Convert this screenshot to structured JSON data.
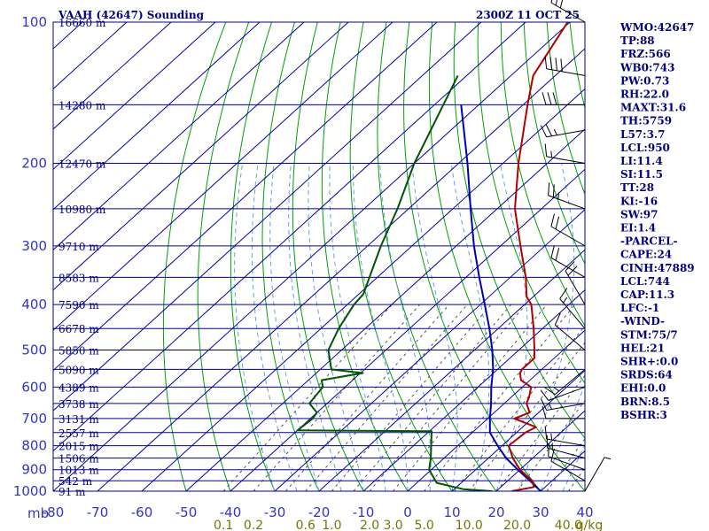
{
  "colors": {
    "frame": "#00007f",
    "isobar": "#0000aa",
    "isotherm": "#0000aa",
    "dry_adiabat": "#00a000",
    "moist_adiabat": "#6aa0d8",
    "mixing_ratio": "#555555",
    "temperature": "#b00000",
    "dewpoint": "#005500",
    "parcel": "#0000b0",
    "axis_label": "#3333cc",
    "mixing_label": "#777700",
    "text": "#00007f",
    "wind": "#000000"
  },
  "header": {
    "title": "VAAH (42647) Sounding",
    "time": "2300Z 11 OCT 25"
  },
  "chart_data": {
    "type": "skew-t",
    "pressure_range_mb": [
      1000,
      100
    ],
    "temperature_range_c": [
      -80,
      40
    ],
    "pressure_unit_label": "mb",
    "pressure_ticks": [
      100,
      200,
      300,
      400,
      500,
      600,
      700,
      800,
      900,
      1000
    ],
    "temperature_ticks": [
      "-80",
      "-70",
      "-60",
      "-50",
      "-40",
      "-30",
      "-20",
      "-10",
      "0",
      "10",
      "20",
      "30",
      "40"
    ],
    "height_labels": [
      {
        "p": 1000,
        "label": "91 m"
      },
      {
        "p": 950,
        "label": "542 m"
      },
      {
        "p": 900,
        "label": "1013 m"
      },
      {
        "p": 850,
        "label": "1506 m"
      },
      {
        "p": 800,
        "label": "2015 m"
      },
      {
        "p": 750,
        "label": "2557 m"
      },
      {
        "p": 700,
        "label": "3131 m"
      },
      {
        "p": 650,
        "label": "3738 m"
      },
      {
        "p": 600,
        "label": "4389 m"
      },
      {
        "p": 550,
        "label": "5090 m"
      },
      {
        "p": 500,
        "label": "5850 m"
      },
      {
        "p": 450,
        "label": "6678 m"
      },
      {
        "p": 400,
        "label": "7590 m"
      },
      {
        "p": 350,
        "label": "8583 m"
      },
      {
        "p": 300,
        "label": "9710 m"
      },
      {
        "p": 250,
        "label": "10980 m"
      },
      {
        "p": 200,
        "label": "12470 m"
      },
      {
        "p": 150,
        "label": "14280 m"
      },
      {
        "p": 100,
        "label": "16660 m"
      }
    ],
    "mixing_ratio_labels": [
      {
        "w": 0.1,
        "label": "0.1"
      },
      {
        "w": 0.2,
        "label": "0.2"
      },
      {
        "w": 0.6,
        "label": "0.6"
      },
      {
        "w": 1.0,
        "label": "1.0"
      },
      {
        "w": 2.0,
        "label": "2.0"
      },
      {
        "w": 3.0,
        "label": "3.0"
      },
      {
        "w": 5.0,
        "label": "5.0"
      },
      {
        "w": 10.0,
        "label": "10.0"
      },
      {
        "w": 20.0,
        "label": "20.0"
      },
      {
        "w": 40.0,
        "label": "40.0"
      }
    ],
    "mixing_ratio_unit": "g/kg",
    "temperature_profile": [
      {
        "p": 1000,
        "t": 23.5
      },
      {
        "p": 980,
        "t": 27.5
      },
      {
        "p": 950,
        "t": 25.5
      },
      {
        "p": 900,
        "t": 20.0
      },
      {
        "p": 850,
        "t": 15.5
      },
      {
        "p": 800,
        "t": 11.5
      },
      {
        "p": 750,
        "t": 12.0
      },
      {
        "p": 730,
        "t": 13.0
      },
      {
        "p": 700,
        "t": 6.0
      },
      {
        "p": 680,
        "t": 8.0
      },
      {
        "p": 650,
        "t": 5.0
      },
      {
        "p": 630,
        "t": 4.0
      },
      {
        "p": 600,
        "t": 2.0
      },
      {
        "p": 580,
        "t": -2.0
      },
      {
        "p": 560,
        "t": -4.0
      },
      {
        "p": 550,
        "t": -4.5
      },
      {
        "p": 520,
        "t": -4.5
      },
      {
        "p": 500,
        "t": -6.5
      },
      {
        "p": 450,
        "t": -12.0
      },
      {
        "p": 400,
        "t": -18.5
      },
      {
        "p": 385,
        "t": -21.5
      },
      {
        "p": 350,
        "t": -26.5
      },
      {
        "p": 300,
        "t": -35.5
      },
      {
        "p": 250,
        "t": -46.0
      },
      {
        "p": 200,
        "t": -56.5
      },
      {
        "p": 150,
        "t": -69.0
      },
      {
        "p": 130,
        "t": -75.0
      },
      {
        "p": 100,
        "t": -80.5
      }
    ],
    "dewpoint_profile": [
      {
        "p": 1000,
        "t": 19.0
      },
      {
        "p": 990,
        "t": 12.0
      },
      {
        "p": 960,
        "t": 4.5
      },
      {
        "p": 900,
        "t": -0.5
      },
      {
        "p": 850,
        "t": -3.0
      },
      {
        "p": 800,
        "t": -6.0
      },
      {
        "p": 745,
        "t": -9.5
      },
      {
        "p": 742,
        "t": -40.0
      },
      {
        "p": 700,
        "t": -39.5
      },
      {
        "p": 680,
        "t": -40.0
      },
      {
        "p": 650,
        "t": -44.0
      },
      {
        "p": 600,
        "t": -45.0
      },
      {
        "p": 580,
        "t": -47.0
      },
      {
        "p": 560,
        "t": -39.5
      },
      {
        "p": 550,
        "t": -47.5
      },
      {
        "p": 500,
        "t": -53.0
      },
      {
        "p": 450,
        "t": -56.0
      },
      {
        "p": 400,
        "t": -58.5
      },
      {
        "p": 380,
        "t": -59.0
      },
      {
        "p": 300,
        "t": -67.0
      },
      {
        "p": 250,
        "t": -72.5
      },
      {
        "p": 200,
        "t": -80.0
      },
      {
        "p": 150,
        "t": -88.0
      },
      {
        "p": 130,
        "t": -92.0
      }
    ],
    "parcel_profile": [
      {
        "p": 1000,
        "t": 30.0
      },
      {
        "p": 950,
        "t": 25.0
      },
      {
        "p": 900,
        "t": 19.5
      },
      {
        "p": 850,
        "t": 14.0
      },
      {
        "p": 800,
        "t": 9.0
      },
      {
        "p": 750,
        "t": 4.0
      },
      {
        "p": 700,
        "t": 0.5
      },
      {
        "p": 650,
        "t": -3.0
      },
      {
        "p": 600,
        "t": -7.0
      },
      {
        "p": 550,
        "t": -11.0
      },
      {
        "p": 500,
        "t": -16.0
      },
      {
        "p": 450,
        "t": -22.0
      },
      {
        "p": 400,
        "t": -29.0
      },
      {
        "p": 350,
        "t": -37.0
      },
      {
        "p": 300,
        "t": -46.0
      },
      {
        "p": 250,
        "t": -56.0
      },
      {
        "p": 200,
        "t": -68.0
      },
      {
        "p": 150,
        "t": -84.0
      }
    ],
    "wind_barbs": [
      {
        "p": 1000,
        "dir": 30,
        "spd": 5
      },
      {
        "p": 950,
        "dir": 300,
        "spd": 10
      },
      {
        "p": 900,
        "dir": 290,
        "spd": 10
      },
      {
        "p": 850,
        "dir": 285,
        "spd": 15
      },
      {
        "p": 800,
        "dir": 280,
        "spd": 15
      },
      {
        "p": 700,
        "dir": 270,
        "spd": 10
      },
      {
        "p": 650,
        "dir": 260,
        "spd": 15
      },
      {
        "p": 600,
        "dir": 250,
        "spd": 10
      },
      {
        "p": 550,
        "dir": 230,
        "spd": 15
      },
      {
        "p": 500,
        "dir": 310,
        "spd": 10
      },
      {
        "p": 450,
        "dir": 320,
        "spd": 15
      },
      {
        "p": 400,
        "dir": 330,
        "spd": 20
      },
      {
        "p": 350,
        "dir": 300,
        "spd": 20
      },
      {
        "p": 300,
        "dir": 300,
        "spd": 20
      },
      {
        "p": 250,
        "dir": 290,
        "spd": 25
      },
      {
        "p": 200,
        "dir": 280,
        "spd": 15
      },
      {
        "p": 170,
        "dir": 260,
        "spd": 25
      },
      {
        "p": 150,
        "dir": 270,
        "spd": 30
      },
      {
        "p": 130,
        "dir": 280,
        "spd": 40
      },
      {
        "p": 100,
        "dir": 300,
        "spd": 30
      }
    ]
  },
  "indices": [
    "WMO:42647",
    "TP:88",
    "FRZ:566",
    "WB0:743",
    "PW:0.73",
    "RH:22.0",
    "MAXT:31.6",
    "TH:5759",
    "L57:3.7",
    "LCL:950",
    "LI:11.4",
    "SI:11.5",
    "TT:28",
    "KI:-16",
    "SW:97",
    "EI:1.4",
    "-PARCEL-",
    "CAPE:24",
    "CINH:47889",
    "LCL:744",
    "CAP:11.3",
    "LFC:-1",
    "-WIND-",
    "STM:75/7",
    "HEL:21",
    "SHR+:0.0",
    "SRDS:64",
    "EHI:0.0",
    "BRN:8.5",
    "BSHR:3"
  ]
}
